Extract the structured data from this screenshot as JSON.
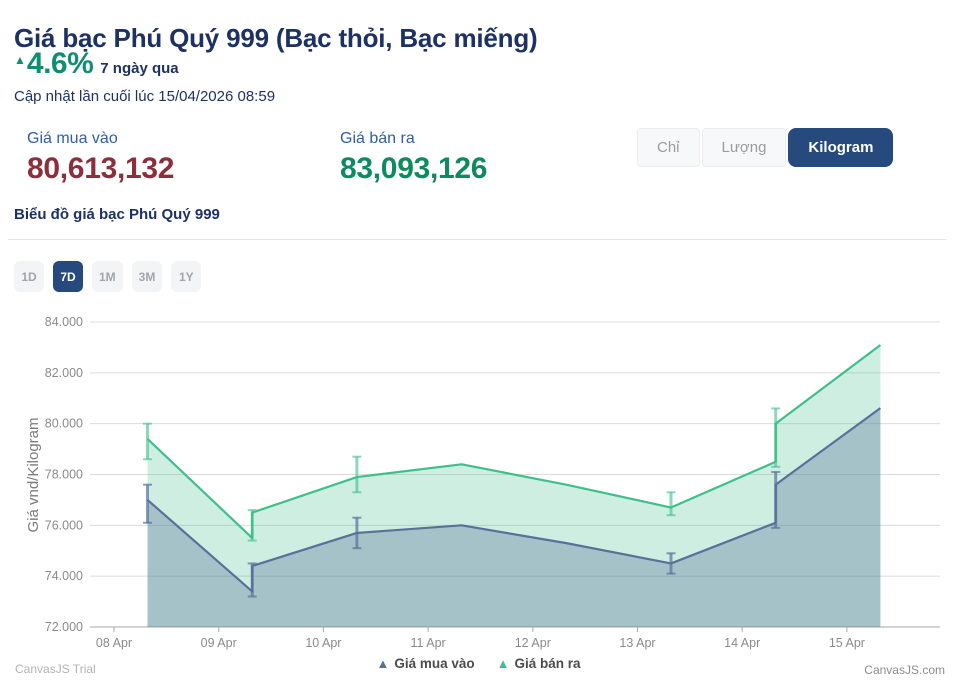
{
  "header": {
    "title": "Giá bạc Phú Quý 999 (Bạc thỏi, Bạc miếng)",
    "change_percent": "4.6%",
    "change_direction": "up",
    "change_period": "7 ngày qua",
    "last_updated": "Cập nhật lần cuối lúc 15/04/2026 08:59"
  },
  "prices": {
    "buy_label": "Giá mua vào",
    "buy_value": "80,613,132",
    "sell_label": "Giá bán ra",
    "sell_value": "83,093,126"
  },
  "unit_toggle": {
    "options": [
      "Chỉ",
      "Lượng",
      "Kilogram"
    ],
    "selected": "Kilogram"
  },
  "chart_section": {
    "heading": "Biểu đồ giá bạc Phú Quý 999",
    "range_options": [
      "1D",
      "7D",
      "1M",
      "3M",
      "1Y"
    ],
    "range_selected": "7D"
  },
  "watermarks": {
    "trial": "CanvasJS Trial",
    "brand": "CanvasJS.com"
  },
  "colors": {
    "navy_text": "#1d3263",
    "teal_change": "#108e74",
    "label_blue": "#2e5fa3",
    "buy_red": "#8c2e3b",
    "sell_green": "#0e8a5f",
    "selected_button": "#26497e"
  },
  "chart_data": {
    "type": "area",
    "title": "",
    "xlabel": "",
    "ylabel": "Giá vnd/Kilogram",
    "unit": "thousand VND per kilogram",
    "grid": true,
    "legend_position": "bottom",
    "ylim": [
      72000,
      84000
    ],
    "y_ticks": [
      {
        "label": "84.000",
        "value": 84000
      },
      {
        "label": "82.000",
        "value": 82000
      },
      {
        "label": "80.000",
        "value": 80000
      },
      {
        "label": "78.000",
        "value": 78000
      },
      {
        "label": "76.000",
        "value": 76000
      },
      {
        "label": "74.000",
        "value": 74000
      },
      {
        "label": "72.000",
        "value": 72000
      }
    ],
    "x_labels": [
      "08 Apr",
      "09 Apr",
      "10 Apr",
      "11 Apr",
      "12 Apr",
      "13 Apr",
      "14 Apr",
      "15 Apr"
    ],
    "series": [
      {
        "name": "Giá mua vào",
        "color": "#5b6f9b",
        "fill": "rgba(91,111,155,0.35)",
        "range_color": "rgba(91,111,155,0.7)",
        "points": [
          [
            0.32,
            77000
          ],
          [
            1.32,
            73400
          ],
          [
            1.32,
            74400
          ],
          [
            2.32,
            75700
          ],
          [
            3.32,
            76000
          ],
          [
            4.32,
            75300
          ],
          [
            5.32,
            74500
          ],
          [
            6.32,
            76100
          ],
          [
            6.32,
            77600
          ],
          [
            7.32,
            80613
          ]
        ],
        "range_bars": [
          {
            "x": 0.32,
            "high": 77600,
            "low": 76100
          },
          {
            "x": 1.32,
            "high": 74500,
            "low": 73200
          },
          {
            "x": 2.32,
            "high": 76300,
            "low": 75100
          },
          {
            "x": 5.32,
            "high": 74900,
            "low": 74100
          },
          {
            "x": 6.32,
            "high": 78100,
            "low": 75900
          }
        ]
      },
      {
        "name": "Giá bán ra",
        "color": "#3fbf8c",
        "fill": "rgba(63,191,140,0.26)",
        "range_color": "rgba(63,191,140,0.6)",
        "points": [
          [
            0.32,
            79400
          ],
          [
            1.32,
            75500
          ],
          [
            1.32,
            76500
          ],
          [
            2.32,
            77900
          ],
          [
            3.32,
            78400
          ],
          [
            4.32,
            77600
          ],
          [
            5.32,
            76700
          ],
          [
            6.32,
            78500
          ],
          [
            6.32,
            80000
          ],
          [
            7.32,
            83093
          ]
        ],
        "range_bars": [
          {
            "x": 0.32,
            "high": 80000,
            "low": 78600
          },
          {
            "x": 1.32,
            "high": 76600,
            "low": 75400
          },
          {
            "x": 2.32,
            "high": 78700,
            "low": 77300
          },
          {
            "x": 5.32,
            "high": 77300,
            "low": 76400
          },
          {
            "x": 6.32,
            "high": 80600,
            "low": 78300
          }
        ]
      }
    ]
  }
}
